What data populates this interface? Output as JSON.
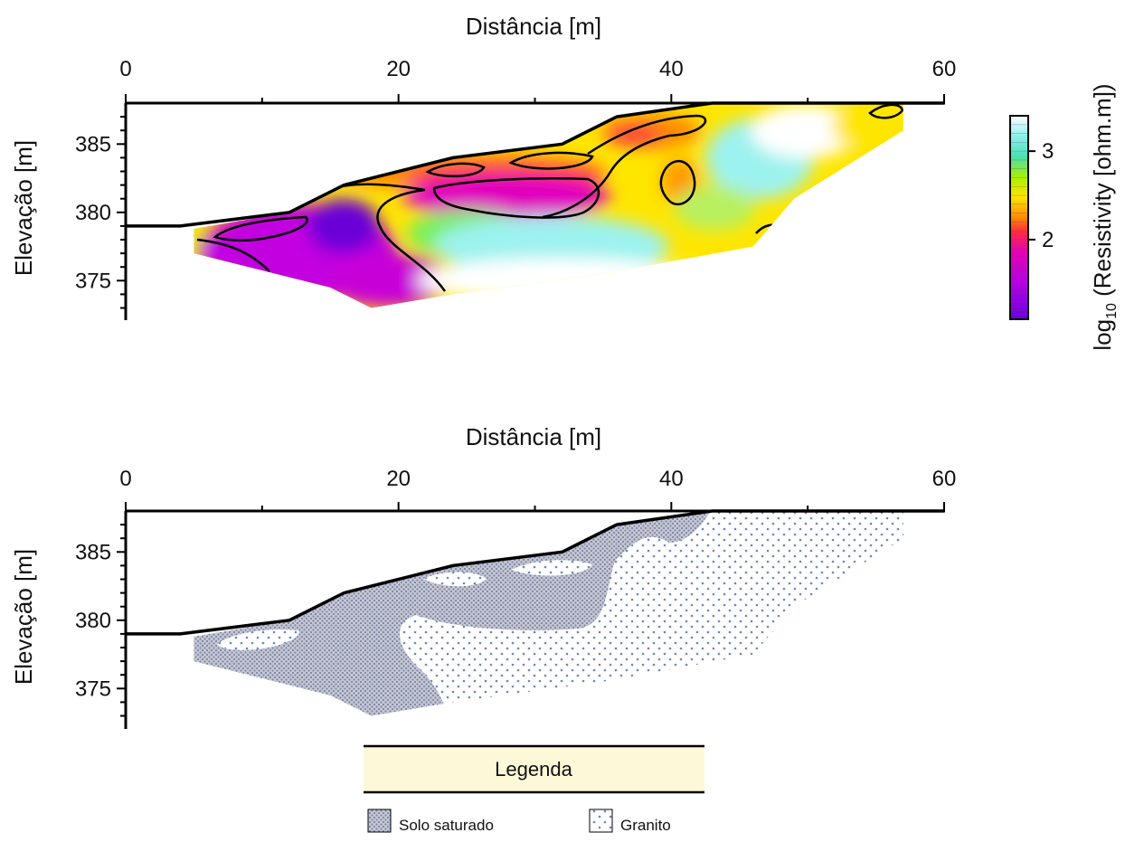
{
  "chart_data": [
    {
      "type": "heatmap",
      "title": "",
      "xlabel": "Distância [m]",
      "ylabel": "Elevação [m]",
      "xlim": [
        0,
        60
      ],
      "ylim": [
        372,
        388
      ],
      "x_ticks": [
        0,
        20,
        40,
        60
      ],
      "y_ticks": [
        375,
        380,
        385
      ],
      "colorbar": {
        "label_main": "log",
        "label_sub": "10",
        "label_rest": " (Resistivity [ohm.m])",
        "ticks": [
          2,
          3
        ],
        "range": [
          1.1,
          3.4
        ]
      },
      "surface": [
        [
          0,
          379
        ],
        [
          4,
          379
        ],
        [
          12,
          380
        ],
        [
          16,
          382
        ],
        [
          24,
          384
        ],
        [
          32,
          385
        ],
        [
          36,
          387
        ],
        [
          43,
          388
        ],
        [
          60,
          388
        ]
      ],
      "section_bottom": [
        [
          5,
          378.5
        ],
        [
          5,
          377
        ],
        [
          15,
          374.5
        ],
        [
          18,
          373
        ],
        [
          24,
          374
        ],
        [
          35,
          375.5
        ],
        [
          46,
          377.5
        ],
        [
          49,
          381
        ],
        [
          57,
          386
        ],
        [
          57,
          388
        ]
      ]
    },
    {
      "type": "area",
      "title": "",
      "xlabel": "Distância [m]",
      "ylabel": "Elevação [m]",
      "xlim": [
        0,
        60
      ],
      "ylim": [
        372,
        388
      ],
      "x_ticks": [
        0,
        20,
        40,
        60
      ],
      "y_ticks": [
        375,
        380,
        385
      ],
      "series": [
        {
          "name": "Solo saturado",
          "pattern": "dense-dots",
          "color": "#8a8fa8"
        },
        {
          "name": "Granito",
          "pattern": "sparse-dots",
          "color": "#5a79b8"
        }
      ],
      "legend": {
        "title": "Legenda",
        "position": "bottom-center",
        "header_color": "#fdf8d8"
      }
    }
  ]
}
